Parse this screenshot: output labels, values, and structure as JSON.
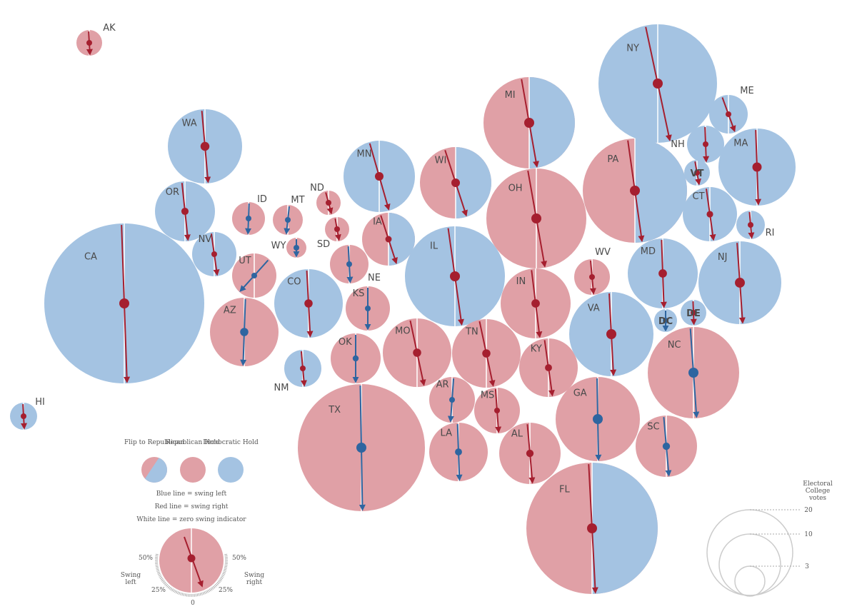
{
  "colors": {
    "republican": "#e0a0a6",
    "democratic": "#a4c3e2",
    "swing_right": "#a51f2f",
    "swing_left": "#2e65a0",
    "zero_line": "#ffffff"
  },
  "states": [
    {
      "code": "AK",
      "ev": 3,
      "status": "R",
      "swing": "right",
      "angle": -3,
      "label_pos": "top-right"
    },
    {
      "code": "WA",
      "ev": 12,
      "status": "D",
      "swing": "right",
      "angle": -5,
      "label_pos": "inside"
    },
    {
      "code": "OR",
      "ev": 7,
      "status": "D",
      "swing": "right",
      "angle": -6,
      "label_pos": "inside"
    },
    {
      "code": "CA",
      "ev": 55,
      "status": "D",
      "swing": "right",
      "angle": -2,
      "label_pos": "inside"
    },
    {
      "code": "NV",
      "ev": 6,
      "status": "D",
      "swing": "right",
      "angle": -8,
      "label_pos": "inside"
    },
    {
      "code": "HI",
      "ev": 4,
      "status": "D",
      "swing": "right",
      "angle": -3,
      "label_pos": "top-right"
    },
    {
      "code": "ID",
      "ev": 4,
      "status": "R",
      "swing": "left",
      "angle": 2,
      "label_pos": "top-right"
    },
    {
      "code": "MT",
      "ev": 3,
      "status": "R",
      "swing": "left",
      "angle": 6,
      "label_pos": "top-right"
    },
    {
      "code": "WY",
      "ev": 3,
      "status": "R",
      "swing": "left",
      "angle": 0,
      "label_pos": "left"
    },
    {
      "code": "UT",
      "ev": 6,
      "status": "R",
      "swing": "left",
      "angle": 42,
      "label_pos": "inside"
    },
    {
      "code": "AZ",
      "ev": 11,
      "status": "R",
      "swing": "left",
      "angle": 2,
      "label_pos": "inside"
    },
    {
      "code": "CO",
      "ev": 9,
      "status": "D",
      "swing": "right",
      "angle": -3,
      "label_pos": "inside"
    },
    {
      "code": "NM",
      "ev": 5,
      "status": "D",
      "swing": "right",
      "angle": -5,
      "label_pos": "bottom-left"
    },
    {
      "code": "ND",
      "ev": 3,
      "status": "R",
      "swing": "right",
      "angle": -15,
      "label_pos": "top-left"
    },
    {
      "code": "SD",
      "ev": 3,
      "status": "R",
      "swing": "right",
      "angle": -10,
      "label_pos": "left"
    },
    {
      "code": "NE",
      "ev": 5,
      "status": "R",
      "swing": "left",
      "angle": -3,
      "label_pos": "bottom-right"
    },
    {
      "code": "KS",
      "ev": 6,
      "status": "R",
      "swing": "left",
      "angle": 0,
      "label_pos": "inside"
    },
    {
      "code": "OK",
      "ev": 7,
      "status": "R",
      "swing": "left",
      "angle": 0,
      "label_pos": "inside"
    },
    {
      "code": "TX",
      "ev": 38,
      "status": "R",
      "swing": "left",
      "angle": -1,
      "label_pos": "inside"
    },
    {
      "code": "MN",
      "ev": 10,
      "status": "D",
      "swing": "right",
      "angle": -16,
      "label_pos": "inside"
    },
    {
      "code": "IA",
      "ev": 6,
      "status": "F",
      "swing": "right",
      "angle": -18,
      "label_pos": "inside"
    },
    {
      "code": "MO",
      "ev": 10,
      "status": "R",
      "swing": "right",
      "angle": -12,
      "label_pos": "inside"
    },
    {
      "code": "AR",
      "ev": 6,
      "status": "R",
      "swing": "left",
      "angle": 4,
      "label_pos": "inside"
    },
    {
      "code": "LA",
      "ev": 8,
      "status": "R",
      "swing": "left",
      "angle": -2,
      "label_pos": "inside"
    },
    {
      "code": "WI",
      "ev": 10,
      "status": "F",
      "swing": "right",
      "angle": -18,
      "label_pos": "inside"
    },
    {
      "code": "IL",
      "ev": 20,
      "status": "D",
      "swing": "right",
      "angle": -8,
      "label_pos": "inside"
    },
    {
      "code": "MI",
      "ev": 16,
      "status": "F",
      "swing": "right",
      "angle": -10,
      "label_pos": "inside"
    },
    {
      "code": "OH",
      "ev": 18,
      "status": "R",
      "swing": "right",
      "angle": -10,
      "label_pos": "inside"
    },
    {
      "code": "IN",
      "ev": 11,
      "status": "R",
      "swing": "right",
      "angle": -7,
      "label_pos": "inside"
    },
    {
      "code": "KY",
      "ev": 8,
      "status": "R",
      "swing": "right",
      "angle": -8,
      "label_pos": "inside"
    },
    {
      "code": "TN",
      "ev": 11,
      "status": "R",
      "swing": "right",
      "angle": -12,
      "label_pos": "inside"
    },
    {
      "code": "MS",
      "ev": 6,
      "status": "R",
      "swing": "right",
      "angle": -4,
      "label_pos": "inside"
    },
    {
      "code": "AL",
      "ev": 9,
      "status": "R",
      "swing": "right",
      "angle": -5,
      "label_pos": "inside"
    },
    {
      "code": "GA",
      "ev": 16,
      "status": "R",
      "swing": "left",
      "angle": -1,
      "label_pos": "inside"
    },
    {
      "code": "FL",
      "ev": 29,
      "status": "F",
      "swing": "right",
      "angle": -3,
      "label_pos": "inside"
    },
    {
      "code": "SC",
      "ev": 9,
      "status": "R",
      "swing": "left",
      "angle": -5,
      "label_pos": "inside"
    },
    {
      "code": "NC",
      "ev": 15,
      "status": "R",
      "swing": "left",
      "angle": -4,
      "label_pos": "inside"
    },
    {
      "code": "VA",
      "ev": 13,
      "status": "D",
      "swing": "right",
      "angle": -3,
      "label_pos": "inside"
    },
    {
      "code": "WV",
      "ev": 5,
      "status": "R",
      "swing": "right",
      "angle": -5,
      "label_pos": "top-right"
    },
    {
      "code": "MD",
      "ev": 10,
      "status": "D",
      "swing": "right",
      "angle": -2,
      "label_pos": "inside"
    },
    {
      "code": "DC",
      "ev": 3,
      "status": "D",
      "swing": "left",
      "angle": 0,
      "label_pos": "inside"
    },
    {
      "code": "DE",
      "ev": 3,
      "status": "D",
      "swing": "right",
      "angle": -2,
      "label_pos": "inside"
    },
    {
      "code": "PA",
      "ev": 20,
      "status": "F",
      "swing": "right",
      "angle": -8,
      "label_pos": "inside"
    },
    {
      "code": "NJ",
      "ev": 14,
      "status": "D",
      "swing": "right",
      "angle": -4,
      "label_pos": "inside"
    },
    {
      "code": "NY",
      "ev": 29,
      "status": "D",
      "swing": "right",
      "angle": -12,
      "label_pos": "inside"
    },
    {
      "code": "CT",
      "ev": 7,
      "status": "D",
      "swing": "right",
      "angle": -8,
      "label_pos": "inside"
    },
    {
      "code": "RI",
      "ev": 4,
      "status": "D",
      "swing": "right",
      "angle": -5,
      "label_pos": "right"
    },
    {
      "code": "MA",
      "ev": 11,
      "status": "D",
      "swing": "right",
      "angle": -2,
      "label_pos": "inside"
    },
    {
      "code": "VT",
      "ev": 3,
      "status": "D",
      "swing": "right",
      "angle": -10,
      "label_pos": "inside"
    },
    {
      "code": "NH",
      "ev": 4,
      "status": "D",
      "swing": "right",
      "angle": -2,
      "label_pos": "left"
    },
    {
      "code": "ME",
      "ev": 4,
      "status": "D",
      "swing": "right",
      "angle": -20,
      "label_pos": "top-right"
    }
  ],
  "legend": {
    "flip_to_republican": "Flip to Republican",
    "republican_hold": "Republican Hold",
    "democratic_hold": "Democratic Hold",
    "blue_line": "Blue line = swing left",
    "red_line": "Red line = swing right",
    "white_line": "White line = zero swing indicator",
    "swing_left": "Swing left",
    "swing_right": "Swing right",
    "tick_50_left": "50%",
    "tick_25_left": "25%",
    "tick_0": "0",
    "tick_25_right": "25%",
    "tick_50_right": "50%"
  },
  "scale": {
    "title": "Electoral College votes",
    "values": [
      "20",
      "10",
      "3"
    ]
  }
}
